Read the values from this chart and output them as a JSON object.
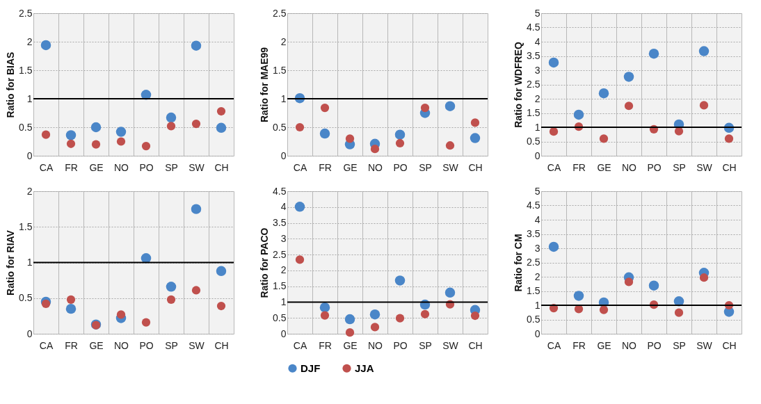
{
  "chart_data": [
    {
      "type": "scatter",
      "ylabel": "Ratio for BIAS",
      "categories": [
        "CA",
        "FR",
        "GE",
        "NO",
        "PO",
        "SP",
        "SW",
        "CH"
      ],
      "ylim": [
        0,
        2.5
      ],
      "yticks": [
        0,
        0.5,
        1,
        1.5,
        2,
        2.5
      ],
      "grid": true,
      "marker": "circle",
      "ref_lines": [
        {
          "axis": "y",
          "value": 1
        }
      ],
      "series": [
        {
          "color": "#4a86c8",
          "values": [
            1.94,
            0.36,
            0.5,
            0.42,
            1.07,
            0.67,
            1.93,
            0.49
          ]
        },
        {
          "color": "#c0504d",
          "values": [
            0.37,
            0.21,
            0.2,
            0.25,
            0.17,
            0.52,
            0.56,
            0.78
          ]
        }
      ]
    },
    {
      "type": "scatter",
      "ylabel": "Ratio for MAE99",
      "categories": [
        "CA",
        "FR",
        "GE",
        "NO",
        "PO",
        "SP",
        "SW",
        "CH"
      ],
      "ylim": [
        0,
        2.5
      ],
      "yticks": [
        0,
        0.5,
        1,
        1.5,
        2,
        2.5
      ],
      "grid": true,
      "marker": "circle",
      "ref_lines": [
        {
          "axis": "y",
          "value": 1
        }
      ],
      "series": [
        {
          "color": "#4a86c8",
          "values": [
            1.01,
            0.39,
            0.2,
            0.21,
            0.37,
            0.75,
            0.87,
            0.31
          ]
        },
        {
          "color": "#c0504d",
          "values": [
            0.5,
            0.84,
            0.3,
            0.12,
            0.22,
            0.84,
            0.18,
            0.58
          ]
        }
      ]
    },
    {
      "type": "scatter",
      "ylabel": "Ratio for WDFREQ",
      "categories": [
        "CA",
        "FR",
        "GE",
        "NO",
        "PO",
        "SP",
        "SW",
        "CH"
      ],
      "ylim": [
        0,
        5
      ],
      "yticks": [
        0,
        0.5,
        1,
        1.5,
        2,
        2.5,
        3,
        3.5,
        4,
        4.5,
        5
      ],
      "grid": true,
      "marker": "circle",
      "ref_lines": [
        {
          "axis": "y",
          "value": 1
        }
      ],
      "series": [
        {
          "color": "#4a86c8",
          "values": [
            3.27,
            1.44,
            2.19,
            2.77,
            3.58,
            1.1,
            3.67,
            0.98
          ]
        },
        {
          "color": "#c0504d",
          "values": [
            0.85,
            1.02,
            0.6,
            1.75,
            0.93,
            0.86,
            1.77,
            0.6
          ]
        }
      ]
    },
    {
      "type": "scatter",
      "ylabel": "Ratio for RIAV",
      "categories": [
        "CA",
        "FR",
        "GE",
        "NO",
        "PO",
        "SP",
        "SW",
        "CH"
      ],
      "ylim": [
        0,
        2
      ],
      "yticks": [
        0,
        0.5,
        1,
        1.5,
        2
      ],
      "grid": true,
      "marker": "circle",
      "ref_lines": [
        {
          "axis": "y",
          "value": 1
        }
      ],
      "series": [
        {
          "color": "#4a86c8",
          "values": [
            0.45,
            0.35,
            0.13,
            0.22,
            1.06,
            0.66,
            1.75,
            0.88
          ]
        },
        {
          "color": "#c0504d",
          "values": [
            0.42,
            0.48,
            0.12,
            0.27,
            0.16,
            0.48,
            0.61,
            0.39
          ]
        }
      ]
    },
    {
      "type": "scatter",
      "ylabel": "Ratio for PACO",
      "categories": [
        "CA",
        "FR",
        "GE",
        "NO",
        "PO",
        "SP",
        "SW",
        "CH"
      ],
      "ylim": [
        0,
        4.5
      ],
      "yticks": [
        0,
        0.5,
        1,
        1.5,
        2,
        2.5,
        3,
        3.5,
        4,
        4.5
      ],
      "grid": true,
      "marker": "circle",
      "legend": "bottom",
      "ref_lines": [
        {
          "axis": "y",
          "value": 1
        }
      ],
      "series": [
        {
          "name": "DJF",
          "color": "#4a86c8",
          "values": [
            4.01,
            0.83,
            0.46,
            0.61,
            1.68,
            0.92,
            1.3,
            0.75
          ]
        },
        {
          "name": "JJA",
          "color": "#c0504d",
          "values": [
            2.34,
            0.58,
            0.04,
            0.21,
            0.49,
            0.62,
            0.93,
            0.57
          ]
        }
      ]
    },
    {
      "type": "scatter",
      "ylabel": "Ratio for CM",
      "categories": [
        "CA",
        "FR",
        "GE",
        "NO",
        "PO",
        "SP",
        "SW",
        "CH"
      ],
      "ylim": [
        0,
        5
      ],
      "yticks": [
        0,
        0.5,
        1,
        1.5,
        2,
        2.5,
        3,
        3.5,
        4,
        4.5,
        5
      ],
      "grid": true,
      "marker": "circle",
      "ref_lines": [
        {
          "axis": "y",
          "value": 1
        }
      ],
      "series": [
        {
          "color": "#4a86c8",
          "values": [
            3.05,
            1.33,
            1.1,
            1.98,
            1.69,
            1.14,
            2.14,
            0.77
          ]
        },
        {
          "color": "#c0504d",
          "values": [
            0.9,
            0.87,
            0.84,
            1.82,
            1.02,
            0.74,
            1.97,
            1.0
          ]
        }
      ]
    }
  ]
}
